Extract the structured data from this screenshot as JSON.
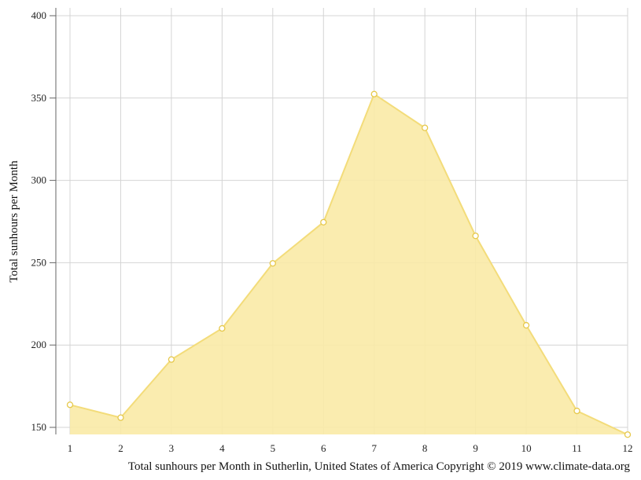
{
  "chart_data": {
    "type": "area",
    "title": "Total sunhours per Month in Sutherlin, United States of America Copyright © 2019 www.climate-data.org",
    "xlabel": "",
    "ylabel": "Total sunhours per Month",
    "x": [
      1,
      2,
      3,
      4,
      5,
      6,
      7,
      8,
      9,
      10,
      11,
      12
    ],
    "values": [
      163.7,
      155.9,
      191.2,
      210.1,
      249.6,
      274.6,
      352.4,
      331.9,
      266.3,
      212.0,
      160.0,
      145.6
    ],
    "ylim": [
      145,
      400
    ],
    "yticks": [
      150,
      200,
      250,
      300,
      350,
      400
    ],
    "grid": true,
    "legend": "none",
    "colors": {
      "fill": "#f9eaa6",
      "line": "#f3dc7a",
      "marker_stroke": "#e6c84a"
    }
  }
}
